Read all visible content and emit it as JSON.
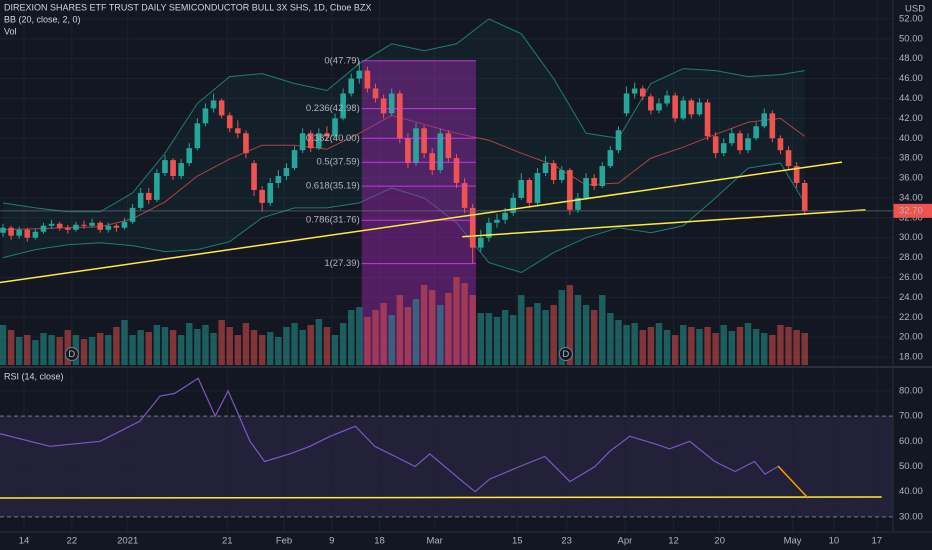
{
  "chart_data": [
    {
      "type": "candlestick",
      "title": "DIREXION SHARES ETF TRUST DAILY SEMICONDUCTOR BULL 3X SHS, 1D, Cboe BZX",
      "indicator_labels": [
        "BB (20, close, 2, 0)",
        "Vol"
      ],
      "y_axis_label": "USD",
      "grid": true,
      "xlim": [
        -0.37,
        109.9
      ],
      "xticks": [
        {
          "value": 2.6,
          "label": "14"
        },
        {
          "value": 8.5,
          "label": "22"
        },
        {
          "value": 15.4,
          "label": "2021"
        },
        {
          "value": 27.7,
          "label": "21"
        },
        {
          "value": 34.7,
          "label": "Feb"
        },
        {
          "value": 40.6,
          "label": "9"
        },
        {
          "value": 46.5,
          "label": "18"
        },
        {
          "value": 53.3,
          "label": "Mar"
        },
        {
          "value": 63.5,
          "label": "15"
        },
        {
          "value": 69.6,
          "label": "23"
        },
        {
          "value": 76.8,
          "label": "Apr"
        },
        {
          "value": 82.8,
          "label": "12"
        },
        {
          "value": 88.5,
          "label": "20"
        },
        {
          "value": 97.5,
          "label": "May"
        },
        {
          "value": 102.6,
          "label": "10"
        },
        {
          "value": 107.9,
          "label": "17"
        }
      ],
      "ylim": [
        17.2,
        53.9
      ],
      "yticks": [
        {
          "value": 18,
          "label": "18.00"
        },
        {
          "value": 20,
          "label": "20.00"
        },
        {
          "value": 22,
          "label": "22.00"
        },
        {
          "value": 24,
          "label": "24.00"
        },
        {
          "value": 26,
          "label": "26.00"
        },
        {
          "value": 28,
          "label": "28.00"
        },
        {
          "value": 30,
          "label": "30.00"
        },
        {
          "value": 32,
          "label": "32.00"
        },
        {
          "value": 34,
          "label": "34.00"
        },
        {
          "value": 36,
          "label": "36.00"
        },
        {
          "value": 38,
          "label": "38.00"
        },
        {
          "value": 40,
          "label": "40.00"
        },
        {
          "value": 42,
          "label": "42.00"
        },
        {
          "value": 44,
          "label": "44.00"
        },
        {
          "value": 46,
          "label": "46.00"
        },
        {
          "value": 48,
          "label": "48.00"
        },
        {
          "value": 50,
          "label": "50.00"
        },
        {
          "value": 52,
          "label": "52.00"
        }
      ],
      "colors": {
        "up": "#26a69a",
        "down": "#ef5350"
      },
      "candles": [
        [
          30.5,
          31.4,
          30.1,
          31.0
        ],
        [
          31.0,
          31.2,
          29.8,
          30.2
        ],
        [
          30.2,
          31.1,
          29.9,
          30.8
        ],
        [
          30.8,
          31.0,
          29.6,
          30.0
        ],
        [
          30.0,
          30.9,
          29.8,
          30.6
        ],
        [
          30.6,
          31.5,
          30.4,
          31.2
        ],
        [
          31.2,
          31.8,
          30.9,
          31.4
        ],
        [
          31.4,
          31.6,
          30.7,
          31.0
        ],
        [
          31.0,
          31.3,
          30.4,
          30.8
        ],
        [
          30.8,
          31.6,
          30.6,
          31.3
        ],
        [
          31.3,
          31.7,
          30.9,
          31.2
        ],
        [
          31.2,
          31.9,
          31.0,
          31.5
        ],
        [
          31.5,
          31.7,
          30.5,
          30.8
        ],
        [
          30.8,
          31.5,
          30.5,
          31.2
        ],
        [
          31.2,
          31.4,
          30.6,
          31.0
        ],
        [
          31.0,
          32.0,
          30.8,
          31.6
        ],
        [
          31.6,
          33.4,
          31.4,
          33.0
        ],
        [
          33.0,
          35.0,
          32.8,
          34.5
        ],
        [
          34.5,
          35.0,
          33.4,
          33.8
        ],
        [
          33.8,
          36.9,
          33.6,
          36.5
        ],
        [
          36.5,
          38.3,
          36.2,
          37.8
        ],
        [
          37.8,
          38.0,
          35.8,
          36.2
        ],
        [
          36.2,
          37.9,
          35.9,
          37.5
        ],
        [
          37.5,
          39.5,
          37.2,
          39.0
        ],
        [
          39.0,
          42.0,
          38.8,
          41.5
        ],
        [
          41.5,
          43.5,
          41.2,
          43.0
        ],
        [
          43.0,
          44.5,
          42.6,
          43.8
        ],
        [
          43.8,
          44.0,
          42.0,
          42.3
        ],
        [
          42.3,
          42.6,
          40.6,
          41.0
        ],
        [
          41.0,
          41.8,
          40.0,
          40.5
        ],
        [
          40.5,
          40.8,
          38.0,
          38.5
        ],
        [
          37.5,
          37.8,
          34.2,
          34.8
        ],
        [
          34.8,
          35.2,
          32.6,
          33.5
        ],
        [
          33.5,
          36.0,
          33.2,
          35.5
        ],
        [
          35.5,
          36.8,
          35.0,
          36.2
        ],
        [
          36.2,
          37.5,
          35.8,
          37.0
        ],
        [
          37.0,
          39.2,
          36.8,
          38.8
        ],
        [
          38.8,
          41.0,
          38.5,
          40.5
        ],
        [
          40.5,
          40.8,
          38.6,
          39.0
        ],
        [
          39.0,
          41.0,
          38.8,
          40.5
        ],
        [
          40.5,
          41.2,
          39.8,
          40.2
        ],
        [
          40.2,
          42.5,
          40.0,
          42.0
        ],
        [
          42.0,
          45.0,
          41.8,
          44.5
        ],
        [
          44.5,
          46.5,
          44.2,
          46.0
        ],
        [
          46.0,
          47.79,
          45.5,
          46.8
        ],
        [
          46.8,
          47.2,
          44.6,
          45.0
        ],
        [
          45.0,
          45.5,
          43.6,
          44.0
        ],
        [
          44.0,
          44.4,
          42.0,
          42.5
        ],
        [
          42.5,
          45.0,
          42.2,
          44.5
        ],
        [
          44.5,
          44.8,
          39.5,
          40.0
        ],
        [
          40.0,
          40.5,
          37.0,
          37.5
        ],
        [
          37.5,
          41.5,
          37.2,
          41.0
        ],
        [
          41.0,
          41.3,
          38.0,
          38.5
        ],
        [
          38.5,
          39.0,
          36.3,
          36.8
        ],
        [
          36.8,
          41.0,
          36.5,
          40.5
        ],
        [
          40.5,
          40.8,
          37.6,
          38.0
        ],
        [
          38.0,
          38.4,
          35.0,
          35.5
        ],
        [
          35.5,
          36.0,
          32.5,
          33.0
        ],
        [
          33.0,
          33.4,
          27.39,
          29.0
        ],
        [
          29.0,
          30.8,
          28.6,
          30.0
        ],
        [
          30.0,
          32.0,
          29.6,
          31.5
        ],
        [
          31.5,
          32.4,
          31.0,
          31.8
        ],
        [
          31.8,
          33.0,
          31.4,
          32.5
        ],
        [
          32.5,
          34.5,
          32.2,
          34.0
        ],
        [
          34.0,
          36.5,
          33.8,
          35.8
        ],
        [
          35.8,
          36.0,
          33.0,
          33.5
        ],
        [
          33.5,
          37.0,
          33.2,
          36.5
        ],
        [
          36.5,
          38.2,
          36.2,
          37.5
        ],
        [
          37.5,
          37.8,
          35.4,
          35.8
        ],
        [
          35.8,
          37.2,
          35.5,
          36.8
        ],
        [
          36.8,
          37.0,
          32.3,
          32.8
        ],
        [
          32.8,
          34.5,
          32.5,
          34.0
        ],
        [
          34.0,
          36.5,
          33.8,
          36.0
        ],
        [
          36.0,
          36.4,
          34.8,
          35.2
        ],
        [
          35.2,
          37.6,
          35.0,
          37.2
        ],
        [
          37.2,
          39.2,
          37.0,
          38.8
        ],
        [
          38.8,
          41.2,
          38.5,
          40.8
        ],
        [
          42.5,
          45.2,
          42.2,
          44.5
        ],
        [
          44.5,
          45.6,
          44.0,
          45.0
        ],
        [
          45.0,
          45.3,
          43.8,
          44.2
        ],
        [
          44.2,
          44.5,
          42.4,
          42.8
        ],
        [
          42.8,
          44.0,
          42.5,
          43.5
        ],
        [
          43.5,
          44.8,
          43.2,
          44.3
        ],
        [
          44.3,
          44.6,
          41.6,
          42.0
        ],
        [
          42.0,
          44.2,
          41.8,
          43.8
        ],
        [
          43.8,
          44.0,
          42.0,
          42.4
        ],
        [
          42.4,
          44.0,
          42.2,
          43.6
        ],
        [
          43.6,
          43.9,
          39.8,
          40.2
        ],
        [
          40.2,
          40.6,
          38.0,
          38.5
        ],
        [
          38.5,
          40.0,
          38.2,
          39.5
        ],
        [
          39.5,
          41.0,
          39.2,
          40.5
        ],
        [
          40.5,
          40.8,
          38.4,
          38.8
        ],
        [
          38.8,
          40.5,
          38.5,
          40.0
        ],
        [
          40.0,
          41.6,
          39.8,
          41.2
        ],
        [
          41.2,
          43.0,
          41.0,
          42.5
        ],
        [
          42.5,
          42.8,
          39.6,
          40.0
        ],
        [
          40.0,
          40.3,
          38.4,
          38.8
        ],
        [
          38.8,
          39.2,
          36.8,
          37.2
        ],
        [
          37.2,
          37.6,
          35.0,
          35.5
        ],
        [
          35.5,
          35.8,
          32.3,
          32.7
        ]
      ],
      "volume": [
        40,
        35,
        28,
        30,
        25,
        32,
        30,
        28,
        35,
        30,
        26,
        28,
        32,
        30,
        38,
        45,
        30,
        35,
        33,
        40,
        38,
        35,
        30,
        42,
        36,
        40,
        32,
        45,
        38,
        30,
        42,
        35,
        30,
        33,
        28,
        38,
        42,
        35,
        40,
        46,
        38,
        30,
        42,
        55,
        58,
        48,
        55,
        62,
        50,
        70,
        58,
        66,
        80,
        75,
        60,
        72,
        88,
        82,
        70,
        52,
        52,
        48,
        55,
        50,
        70,
        58,
        62,
        55,
        60,
        75,
        80,
        70,
        60,
        55,
        70,
        52,
        45,
        40,
        42,
        35,
        38,
        42,
        35,
        30,
        40,
        38,
        36,
        38,
        32,
        40,
        34,
        38,
        42,
        36,
        32,
        30,
        40,
        38,
        35,
        32
      ],
      "bollinger": {
        "x": [
          0,
          4,
          8,
          12,
          16,
          20,
          24,
          28,
          32,
          36,
          40,
          44,
          48,
          52,
          56,
          60,
          64,
          68,
          72,
          76,
          80,
          84,
          88,
          92,
          96,
          99
        ],
        "upper": [
          33.5,
          33.0,
          32.6,
          32.6,
          34.5,
          38.5,
          43.5,
          46.2,
          46.5,
          45.5,
          44.8,
          47.5,
          49.5,
          48.8,
          49.5,
          52.0,
          50.5,
          46.0,
          40.5,
          40.0,
          45.5,
          47.0,
          46.8,
          46.2,
          46.4,
          46.8
        ],
        "basis": [
          30.8,
          30.9,
          31.0,
          31.1,
          31.9,
          33.6,
          36.2,
          37.9,
          39.3,
          39.3,
          38.9,
          40.5,
          42.3,
          41.4,
          40.5,
          39.8,
          38.5,
          37.3,
          35.3,
          35.5,
          38.0,
          39.1,
          40.4,
          41.6,
          42.0,
          40.2
        ],
        "lower": [
          28.0,
          28.8,
          29.3,
          29.5,
          29.2,
          28.6,
          28.8,
          29.6,
          32.0,
          33.0,
          33.0,
          33.5,
          35.0,
          34.0,
          31.5,
          27.5,
          26.5,
          28.5,
          30.0,
          31.0,
          30.5,
          31.2,
          34.0,
          37.0,
          37.5,
          33.5
        ],
        "band_color": "#26a69a",
        "basis_color": "#ef5350"
      },
      "fib": {
        "x": [
          44.3,
          58.4
        ],
        "color": "#9c27b0",
        "label_color": "#e040fb",
        "levels": [
          {
            "value": 47.79,
            "label": "0(47.79)"
          },
          {
            "value": 42.98,
            "label": "0.236(42.98)"
          },
          {
            "value": 40.0,
            "label": "0.382(40.00)"
          },
          {
            "value": 37.59,
            "label": "0.5(37.59)"
          },
          {
            "value": 35.19,
            "label": "0.618(35.19)"
          },
          {
            "value": 31.76,
            "label": "0.786(31.76)"
          },
          {
            "value": 27.39,
            "label": "1(27.39)"
          }
        ]
      },
      "trendlines": [
        {
          "x": [
            -0.37,
            103.6
          ],
          "y": [
            25.5,
            37.6
          ],
          "color": "#ffeb3b"
        },
        {
          "x": [
            56.7,
            106.5
          ],
          "y": [
            30.1,
            32.8
          ],
          "color": "#ffeb3b"
        }
      ],
      "last_price": {
        "value": 32.7,
        "label": "32.70",
        "color": "#ef5350"
      },
      "events": [
        {
          "x": 8.5,
          "label": "D"
        },
        {
          "x": 69.5,
          "label": "D"
        }
      ]
    },
    {
      "type": "line",
      "title": "RSI (14, close)",
      "color": "#7e57c2",
      "grid": true,
      "xlim": [
        -0.37,
        109.9
      ],
      "ylim": [
        24.0,
        88.3
      ],
      "yticks": [
        {
          "value": 80,
          "label": "80.00"
        },
        {
          "value": 70,
          "label": "70.00"
        },
        {
          "value": 60,
          "label": "60.00"
        },
        {
          "value": 50,
          "label": "50.00"
        },
        {
          "value": 40,
          "label": "40.00"
        },
        {
          "value": 30,
          "label": "30.00"
        }
      ],
      "bands": [
        70,
        30
      ],
      "band_color": "#7e57c2",
      "x": [
        -0.37,
        5.8,
        12,
        16.9,
        19.4,
        21.2,
        24.1,
        26.2,
        27.8,
        30.5,
        32.3,
        35.4,
        37.9,
        40.4,
        43.5,
        45.9,
        48.4,
        50.9,
        52.7,
        56.4,
        58.3,
        60.1,
        63.8,
        66.9,
        70,
        73.1,
        74.9,
        77.4,
        80.5,
        82.3,
        84.8,
        87.9,
        90.4,
        92.8,
        94.1,
        95.7
      ],
      "values": [
        63,
        58,
        60,
        68,
        78,
        79,
        85,
        70,
        80,
        60,
        52,
        55,
        58,
        62,
        66,
        58,
        54,
        50,
        55,
        45,
        40,
        45,
        50,
        54,
        44,
        50,
        56,
        62,
        59,
        57,
        60,
        52,
        48,
        52,
        47,
        50
      ],
      "trendlines": [
        {
          "x": [
            -0.37,
            108.5
          ],
          "y": [
            37.5,
            37.9
          ],
          "color": "#ffeb3b"
        },
        {
          "x": [
            95.7,
            99.4
          ],
          "y": [
            50.2,
            37.5
          ],
          "color": "#ff9800"
        }
      ]
    }
  ]
}
